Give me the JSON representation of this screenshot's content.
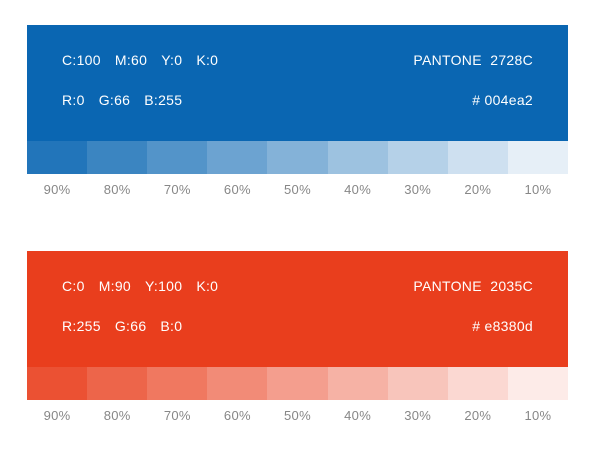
{
  "page": {
    "background": "#ffffff",
    "label_text_color": "#878787",
    "swatch_text_color": "#ffffff"
  },
  "swatches": [
    {
      "name": "blue",
      "base_color": "#0a66b2",
      "cmyk_tokens": [
        "C:100",
        "M:60",
        "Y:0",
        "K:0"
      ],
      "rgb_tokens": [
        "R:0",
        "G:66",
        "B:255"
      ],
      "pantone": "PANTONE  2728C",
      "hex_label": "# 004ea2",
      "tints": [
        "90%",
        "80%",
        "70%",
        "60%",
        "50%",
        "40%",
        "30%",
        "20%",
        "10%"
      ]
    },
    {
      "name": "red",
      "base_color": "#e93e1d",
      "cmyk_tokens": [
        "C:0",
        "M:90",
        "Y:100",
        "K:0"
      ],
      "rgb_tokens": [
        "R:255",
        "G:66",
        "B:0"
      ],
      "pantone": "PANTONE  2035C",
      "hex_label": "# e8380d",
      "tints": [
        "90%",
        "80%",
        "70%",
        "60%",
        "50%",
        "40%",
        "30%",
        "20%",
        "10%"
      ]
    }
  ]
}
